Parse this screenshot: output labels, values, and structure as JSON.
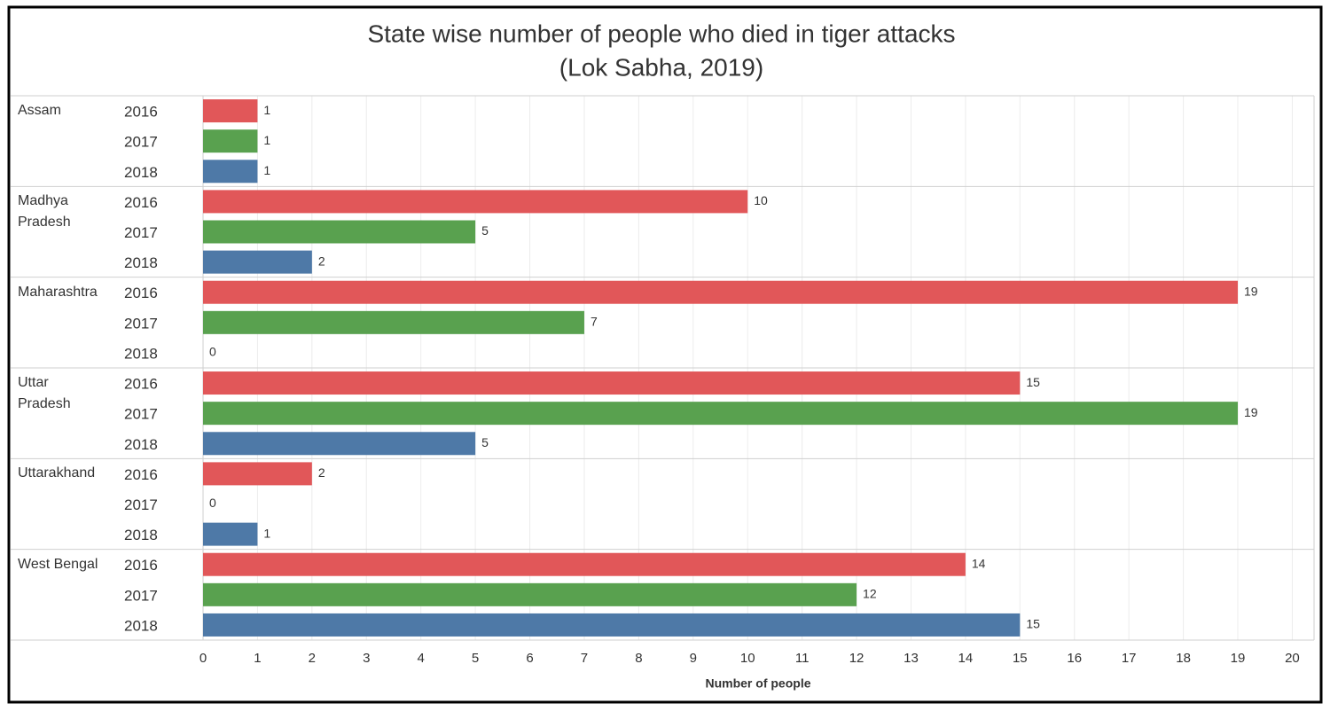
{
  "chart_data": {
    "type": "bar",
    "orientation": "horizontal",
    "title": "State wise number of people who died in tiger attacks",
    "subtitle": "(Lok Sabha, 2019)",
    "categories": [
      "Assam",
      "Madhya Pradesh",
      "Maharashtra",
      "Uttar Pradesh",
      "Uttarakhand",
      "West Bengal"
    ],
    "series": [
      {
        "name": "2016",
        "color": "#e15759",
        "values": [
          1,
          10,
          19,
          15,
          2,
          14
        ]
      },
      {
        "name": "2017",
        "color": "#59a14f",
        "values": [
          1,
          5,
          7,
          19,
          0,
          12
        ]
      },
      {
        "name": "2018",
        "color": "#4e79a7",
        "values": [
          1,
          2,
          0,
          5,
          1,
          15
        ]
      }
    ],
    "xlim": [
      0,
      20.4
    ],
    "xticks": [
      0,
      1,
      2,
      3,
      4,
      5,
      6,
      7,
      8,
      9,
      10,
      11,
      12,
      13,
      14,
      15,
      16,
      17,
      18,
      19,
      20
    ],
    "xlabel": "Number of people",
    "grid": true
  }
}
